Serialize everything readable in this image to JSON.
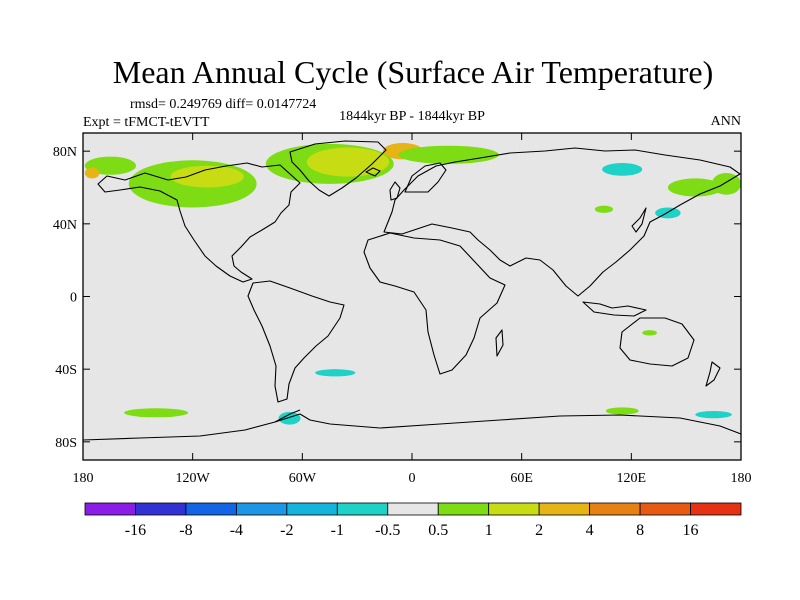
{
  "chart_data": {
    "type": "heatmap",
    "title": "Mean Annual Cycle (Surface Air Temperature)",
    "stats_line": "rmsd= 0.249769 diff= 0.0147724",
    "left_label": "Expt = tFMCT-tEVTT",
    "center_label": "1844kyr BP - 1844kyr BP",
    "right_label": "ANN",
    "lon_range": [
      -180,
      180
    ],
    "lat_range": [
      -90,
      90
    ],
    "x_ticks": [
      {
        "value": -180,
        "label": "180"
      },
      {
        "value": -120,
        "label": "120W"
      },
      {
        "value": -60,
        "label": "60W"
      },
      {
        "value": 0,
        "label": "0"
      },
      {
        "value": 60,
        "label": "60E"
      },
      {
        "value": 120,
        "label": "120E"
      },
      {
        "value": 180,
        "label": "180"
      }
    ],
    "y_ticks": [
      {
        "value": 80,
        "label": "80N"
      },
      {
        "value": 40,
        "label": "40N"
      },
      {
        "value": 0,
        "label": "0"
      },
      {
        "value": -40,
        "label": "40S"
      },
      {
        "value": -80,
        "label": "80S"
      }
    ],
    "colorbar": {
      "colors": [
        "#8a1ee6",
        "#3232d2",
        "#1464e6",
        "#1e96e6",
        "#14b4dc",
        "#1ed2c8",
        "#e6e6e6",
        "#7ddc14",
        "#c8dc14",
        "#e6b414",
        "#e68214",
        "#e65a14",
        "#e63214"
      ],
      "labels": [
        "-16",
        "-8",
        "-4",
        "-2",
        "-1",
        "-0.5",
        "0.5",
        "1",
        "2",
        "4",
        "8",
        "16"
      ]
    },
    "regions": [
      {
        "level": "1",
        "color": "#7ddc14",
        "lon": -165,
        "lat": 72,
        "w": 28,
        "h": 10
      },
      {
        "level": "1",
        "color": "#7ddc14",
        "lon": -120,
        "lat": 62,
        "w": 70,
        "h": 26
      },
      {
        "level": "2",
        "color": "#c8dc14",
        "lon": -112,
        "lat": 66,
        "w": 40,
        "h": 12
      },
      {
        "level": "4",
        "color": "#e6b414",
        "lon": -175,
        "lat": 68,
        "w": 8,
        "h": 6
      },
      {
        "level": "1",
        "color": "#7ddc14",
        "lon": -45,
        "lat": 73,
        "w": 70,
        "h": 22
      },
      {
        "level": "2",
        "color": "#c8dc14",
        "lon": -35,
        "lat": 74,
        "w": 45,
        "h": 16
      },
      {
        "level": "4",
        "color": "#e6b414",
        "lon": -5,
        "lat": 80,
        "w": 22,
        "h": 9
      },
      {
        "level": "1",
        "color": "#7ddc14",
        "lon": 20,
        "lat": 78,
        "w": 55,
        "h": 10
      },
      {
        "level": "-1",
        "color": "#1ed2c8",
        "lon": 115,
        "lat": 70,
        "w": 22,
        "h": 7
      },
      {
        "level": "-1",
        "color": "#1ed2c8",
        "lon": 140,
        "lat": 46,
        "w": 14,
        "h": 6
      },
      {
        "level": "1",
        "color": "#7ddc14",
        "lon": 155,
        "lat": 60,
        "w": 30,
        "h": 10
      },
      {
        "level": "1",
        "color": "#7ddc14",
        "lon": 172,
        "lat": 62,
        "w": 16,
        "h": 12
      },
      {
        "level": "1",
        "color": "#7ddc14",
        "lon": 105,
        "lat": 48,
        "w": 10,
        "h": 4
      },
      {
        "level": "-1",
        "color": "#1ed2c8",
        "lon": -42,
        "lat": -42,
        "w": 22,
        "h": 4
      },
      {
        "level": "1",
        "color": "#7ddc14",
        "lon": -140,
        "lat": -64,
        "w": 35,
        "h": 5
      },
      {
        "level": "1",
        "color": "#7ddc14",
        "lon": 115,
        "lat": -63,
        "w": 18,
        "h": 4
      },
      {
        "level": "-1",
        "color": "#1ed2c8",
        "lon": 165,
        "lat": -65,
        "w": 20,
        "h": 4
      },
      {
        "level": "-1",
        "color": "#1ed2c8",
        "lon": -67,
        "lat": -67,
        "w": 12,
        "h": 7
      },
      {
        "level": "1",
        "color": "#7ddc14",
        "lon": 130,
        "lat": -20,
        "w": 8,
        "h": 3
      }
    ]
  }
}
